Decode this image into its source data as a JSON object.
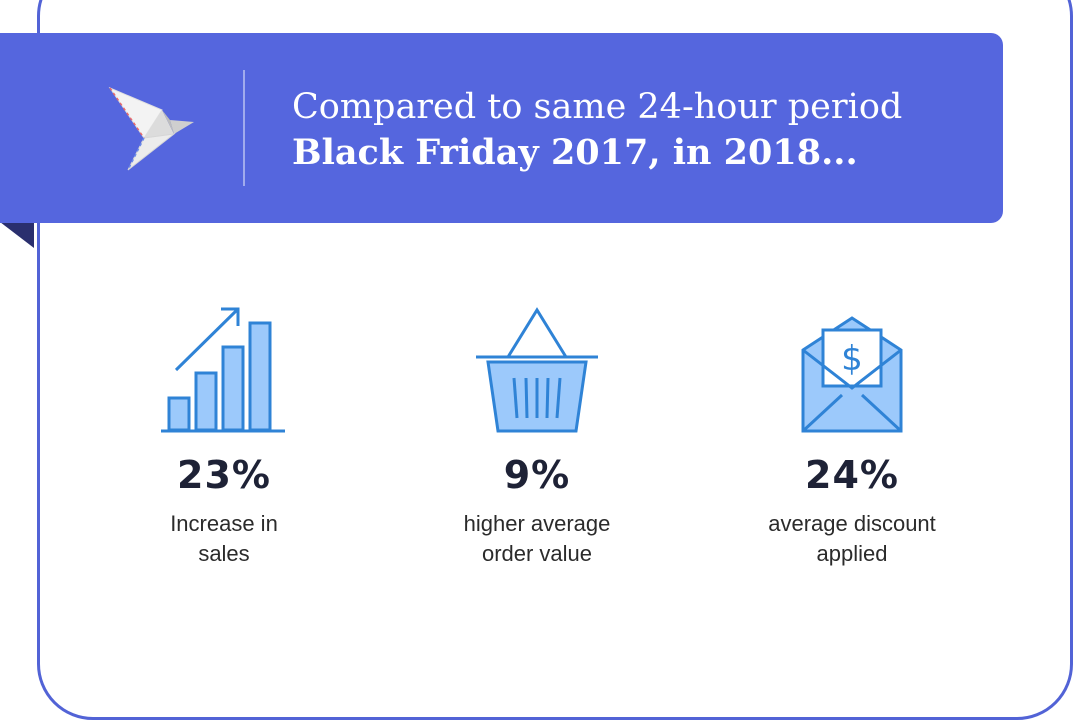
{
  "header": {
    "line1": "Compared to same 24-hour period",
    "line2": "Black Friday 2017, in 2018..."
  },
  "stats": [
    {
      "value": "23%",
      "label_line1": "Increase in",
      "label_line2": "sales",
      "icon": "rising-bar-chart-icon"
    },
    {
      "value": "9%",
      "label_line1": "higher average",
      "label_line2": "order value",
      "icon": "shopping-basket-icon"
    },
    {
      "value": "24%",
      "label_line1": "average discount",
      "label_line2": "applied",
      "icon": "envelope-dollar-icon"
    }
  ],
  "colors": {
    "banner": "#5566de",
    "frame": "#5263d6",
    "icon_stroke": "#2f83d6",
    "icon_fill": "#9cc9fb",
    "value_text": "#1e2236"
  }
}
